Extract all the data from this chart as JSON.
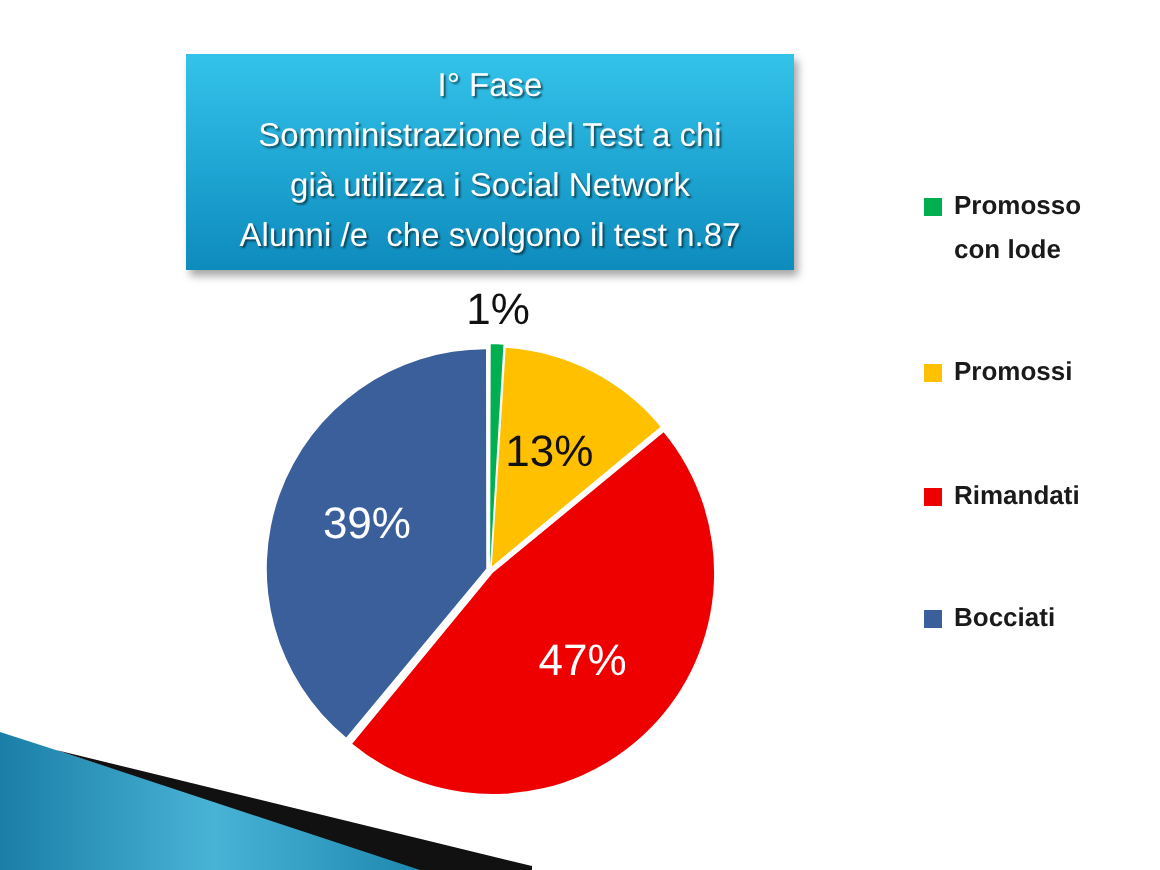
{
  "chart_data": {
    "type": "pie",
    "title": "I° Fase\nSomministrazione del Test a chi\ngià utilizza i Social Network\nAlunni /e  che svolgono il test n.87",
    "categories": [
      "Promosso con lode",
      "Promossi",
      "Rimandati",
      "Bocciati"
    ],
    "values": [
      1,
      13,
      47,
      39
    ],
    "colors": [
      "#00b050",
      "#ffc000",
      "#ee0000",
      "#3a5f9a"
    ],
    "value_labels": [
      "1%",
      "13%",
      "47%",
      "39%"
    ],
    "legend": "right"
  }
}
